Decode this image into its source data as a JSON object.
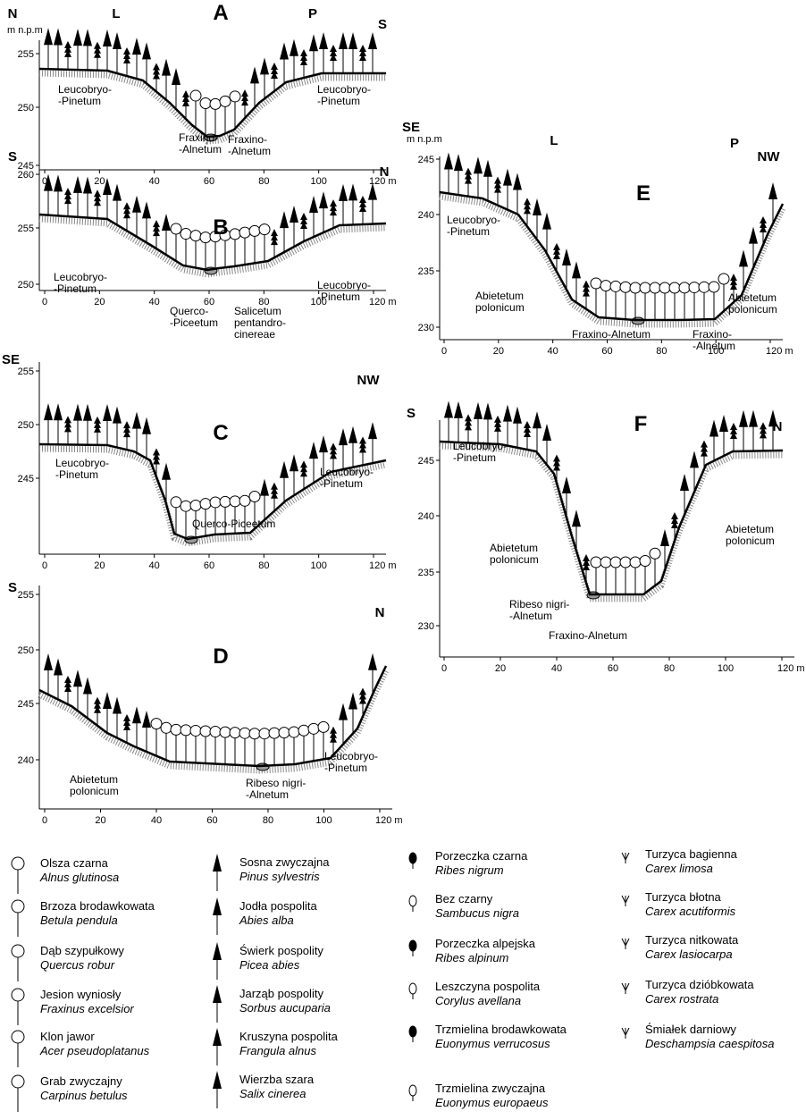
{
  "panels": [
    {
      "label": "A",
      "unit": "m n.p.m",
      "directions": [
        "N",
        "L",
        "P",
        "S"
      ],
      "yticks": [
        "255",
        "250",
        "245"
      ],
      "xticks": [
        "0",
        "20",
        "40",
        "60",
        "80",
        "100",
        "120 m"
      ],
      "communities": [
        [
          "Leucobryo-",
          "-Pinetum"
        ],
        [
          "Leucobryo-",
          "-Pinetum"
        ],
        [
          "Fraxino-",
          "-Alnetum"
        ],
        [
          "Fraxino-",
          "-Alnetum"
        ]
      ]
    },
    {
      "label": "B",
      "directions": [
        "S",
        "N"
      ],
      "yticks": [
        "260",
        "255",
        "250"
      ],
      "xticks": [
        "0",
        "20",
        "40",
        "60",
        "80",
        "100",
        "120 m"
      ],
      "communities": [
        [
          "Leucobryo-",
          "-Pinetum"
        ],
        [
          "Leucobryo-",
          "-Pinetum"
        ],
        [
          "Querco-",
          "-Piceetum"
        ],
        [
          "Salicetum",
          "pentandro-",
          "cinereae"
        ]
      ]
    },
    {
      "label": "C",
      "directions": [
        "SE",
        "NW"
      ],
      "yticks": [
        "255",
        "250",
        "245"
      ],
      "xticks": [
        "0",
        "20",
        "40",
        "60",
        "80",
        "100",
        "120 m"
      ],
      "communities": [
        [
          "Leucobryo-",
          "-Pinetum"
        ],
        [
          "Leucobryo-",
          "-Pinetum"
        ],
        [
          "Querco-Piceetum"
        ]
      ]
    },
    {
      "label": "D",
      "directions": [
        "S",
        "N"
      ],
      "yticks": [
        "255",
        "250",
        "245",
        "240"
      ],
      "xticks": [
        "0",
        "20",
        "40",
        "60",
        "80",
        "100",
        "120 m"
      ],
      "communities": [
        [
          "Abietetum",
          "polonicum"
        ],
        [
          "Ribeso nigri-",
          "-Alnetum"
        ],
        [
          "Leucobryo-",
          "-Pinetum"
        ]
      ]
    },
    {
      "label": "E",
      "unit": "m n.p.m",
      "directions": [
        "SE",
        "L",
        "P",
        "NW"
      ],
      "yticks": [
        "245",
        "240",
        "235",
        "230"
      ],
      "xticks": [
        "0",
        "20",
        "40",
        "60",
        "80",
        "100",
        "120 m"
      ],
      "communities": [
        [
          "Leucobryo-",
          "-Pinetum"
        ],
        [
          "Abietetum",
          "polonicum"
        ],
        [
          "Fraxino-Alnetum"
        ],
        [
          "Fraxino-",
          "-Alnetum"
        ],
        [
          "Abietetum",
          "polonicum"
        ]
      ]
    },
    {
      "label": "F",
      "directions": [
        "S",
        "N"
      ],
      "yticks": [
        "245",
        "240",
        "235",
        "230"
      ],
      "xticks": [
        "0",
        "20",
        "40",
        "60",
        "80",
        "100",
        "120 m"
      ],
      "communities": [
        [
          "Leucobryo-",
          "-Pinetum"
        ],
        [
          "Abietetum",
          "polonicum"
        ],
        [
          "Abietetum",
          "polonicum"
        ],
        [
          "Ribeso nigri-",
          "-Alnetum"
        ],
        [
          "Fraxino-Alnetum"
        ]
      ]
    }
  ],
  "legend": [
    [
      {
        "name": "Olsza czarna",
        "latin": "Alnus glutinosa"
      },
      {
        "name": "Brzoza brodawkowata",
        "latin": "Betula pendula"
      },
      {
        "name": "Dąb szypułkowy",
        "latin": "Quercus robur"
      },
      {
        "name": "Jesion wyniosły",
        "latin": "Fraxinus excelsior"
      },
      {
        "name": "Klon jawor",
        "latin": "Acer pseudoplatanus"
      },
      {
        "name": "Grab zwyczajny",
        "latin": "Carpinus betulus"
      }
    ],
    [
      {
        "name": "Sosna zwyczajna",
        "latin": "Pinus sylvestris"
      },
      {
        "name": "Jodła pospolita",
        "latin": "Abies alba"
      },
      {
        "name": "Świerk pospolity",
        "latin": "Picea abies"
      },
      {
        "name": "Jarząb pospolity",
        "latin": "Sorbus aucuparia"
      },
      {
        "name": "Kruszyna pospolita",
        "latin": "Frangula alnus"
      },
      {
        "name": "Wierzba szara",
        "latin": "Salix cinerea"
      }
    ],
    [
      {
        "name": "Porzeczka czarna",
        "latin": "Ribes nigrum"
      },
      {
        "name": "Bez czarny",
        "latin": "Sambucus nigra"
      },
      {
        "name": "Porzeczka alpejska",
        "latin": "Ribes alpinum"
      },
      {
        "name": "Leszczyna pospolita",
        "latin": "Corylus avellana"
      },
      {
        "name": "Trzmielina brodawkowata",
        "latin": "Euonymus verrucosus"
      },
      {
        "name": "Trzmielina zwyczajna",
        "latin": "Euonymus europaeus"
      }
    ],
    [
      {
        "name": "Turzyca bagienna",
        "latin": "Carex limosa"
      },
      {
        "name": "Turzyca błotna",
        "latin": "Carex acutiformis"
      },
      {
        "name": "Turzyca nitkowata",
        "latin": "Carex lasiocarpa"
      },
      {
        "name": "Turzyca dzióbkowata",
        "latin": "Carex rostrata"
      },
      {
        "name": "Śmiałek darniowy",
        "latin": "Deschampsia caespitosa"
      }
    ]
  ]
}
